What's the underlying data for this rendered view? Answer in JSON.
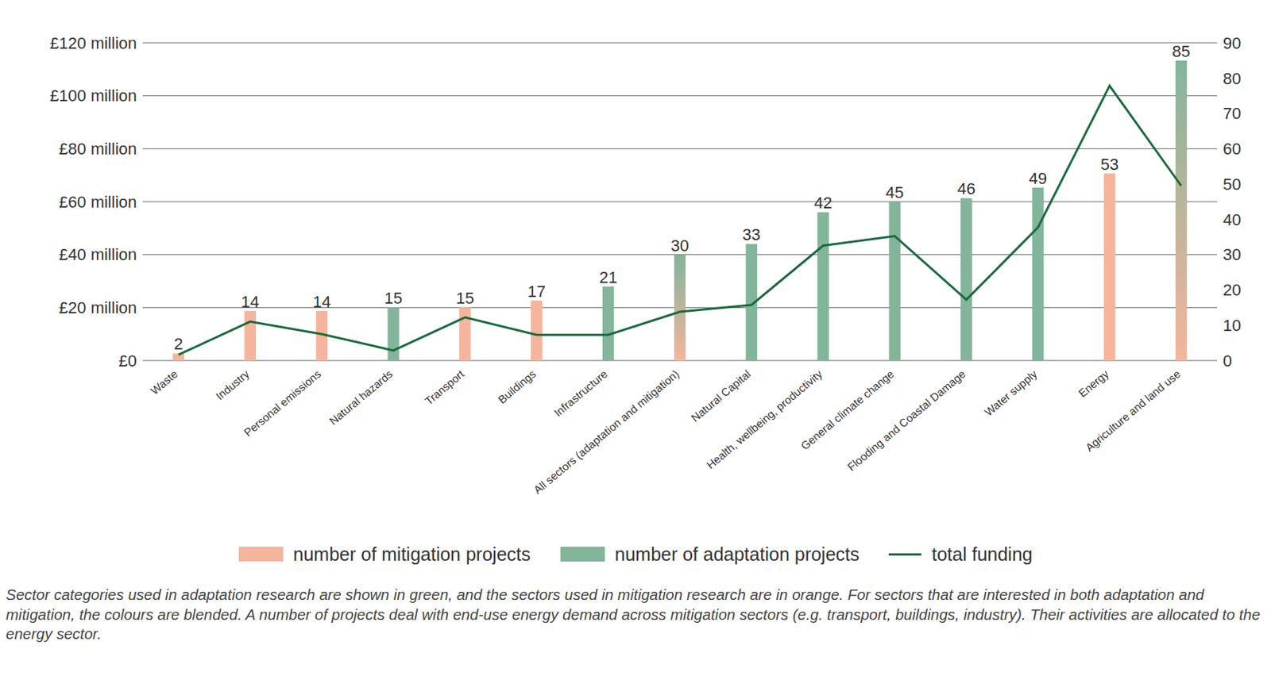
{
  "chart_data": {
    "type": "bar",
    "categories": [
      "Waste",
      "Industry",
      "Personal emissions",
      "Natural hazards",
      "Transport",
      "Buildings",
      "Infrastructure",
      "All sectors (adaptation and mitigation)",
      "Natural Capital",
      "Health, wellbeing, productivity",
      "General climate change",
      "Flooding and Coastal Damage",
      "Water supply",
      "Energy",
      "Agriculture and land use"
    ],
    "series": [
      {
        "name": "number of mitigation projects",
        "type": "bar",
        "axis": "y2",
        "color": "#f5b59c",
        "values": [
          2,
          14,
          14,
          null,
          15,
          17,
          null,
          30,
          null,
          null,
          null,
          null,
          null,
          53,
          85
        ]
      },
      {
        "name": "number of adaptation projects",
        "type": "bar",
        "axis": "y2",
        "color": "#82b59a",
        "values": [
          null,
          null,
          null,
          15,
          null,
          null,
          21,
          30,
          33,
          42,
          45,
          46,
          49,
          null,
          85
        ]
      },
      {
        "name": "total funding",
        "type": "line",
        "color": "#1a6b3c",
        "values": [
          2.2,
          14.7,
          10,
          3.8,
          16.3,
          9.7,
          9.7,
          18.4,
          21,
          43.4,
          47,
          23,
          50.3,
          103.8,
          66
        ]
      }
    ],
    "ylim": [
      0,
      120
    ],
    "yticks": [
      {
        "value": 0,
        "label": "£0"
      },
      {
        "value": 20,
        "label": "£20 million"
      },
      {
        "value": 40,
        "label": "£40 million"
      },
      {
        "value": 60,
        "label": "£60 million"
      },
      {
        "value": 80,
        "label": "£80 million"
      },
      {
        "value": 100,
        "label": "£100 million"
      },
      {
        "value": 120,
        "label": "£120 million"
      }
    ],
    "y2lim": [
      0,
      90
    ],
    "y2ticks": [
      0,
      10,
      20,
      30,
      40,
      50,
      60,
      70,
      80,
      90
    ],
    "grid": true,
    "data_labels": true,
    "legend": "bottom",
    "caption": "Sector categories used in adaptation research are shown in green, and the sectors used in mitigation research are in orange. For sectors that are interested in both adaptation and mitigation, the colours are blended. A number of projects deal with end-use energy demand across mitigation sectors (e.g. transport, buildings, industry). Their activities are allocated to the energy sector."
  }
}
